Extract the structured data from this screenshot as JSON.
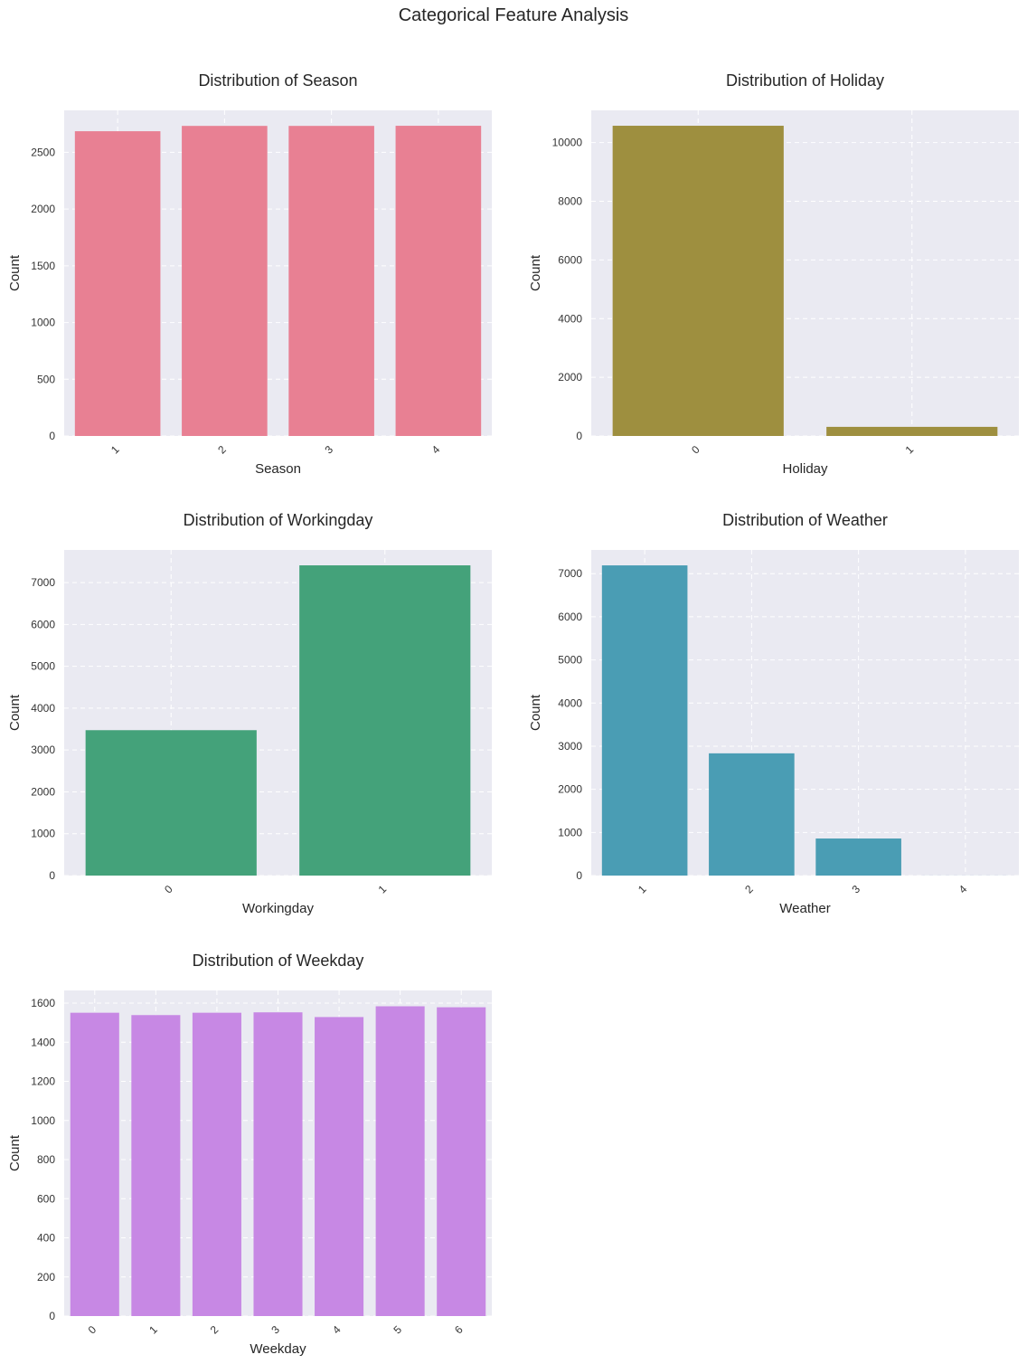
{
  "figure": {
    "title": "Categorical Feature Analysis"
  },
  "chart_data": [
    {
      "type": "bar",
      "title": "Distribution of Season",
      "xlabel": "Season",
      "ylabel": "Count",
      "categories": [
        "1",
        "2",
        "3",
        "4"
      ],
      "values": [
        2686,
        2733,
        2733,
        2734
      ],
      "yticks": [
        0,
        500,
        1000,
        1500,
        2000,
        2500
      ],
      "ylim": [
        0,
        2870
      ],
      "color": "#e88093",
      "grid": true
    },
    {
      "type": "bar",
      "title": "Distribution of Holiday",
      "xlabel": "Holiday",
      "ylabel": "Count",
      "categories": [
        "0",
        "1"
      ],
      "values": [
        10575,
        311
      ],
      "yticks": [
        0,
        2000,
        4000,
        6000,
        8000,
        10000
      ],
      "ylim": [
        0,
        11100
      ],
      "color": "#9e8f3f",
      "grid": true
    },
    {
      "type": "bar",
      "title": "Distribution of Workingday",
      "xlabel": "Workingday",
      "ylabel": "Count",
      "categories": [
        "0",
        "1"
      ],
      "values": [
        3474,
        7412
      ],
      "yticks": [
        0,
        1000,
        2000,
        3000,
        4000,
        5000,
        6000,
        7000
      ],
      "ylim": [
        0,
        7780
      ],
      "color": "#44a27a",
      "grid": true
    },
    {
      "type": "bar",
      "title": "Distribution of Weather",
      "xlabel": "Weather",
      "ylabel": "Count",
      "categories": [
        "1",
        "2",
        "3",
        "4"
      ],
      "values": [
        7192,
        2834,
        859,
        1
      ],
      "yticks": [
        0,
        1000,
        2000,
        3000,
        4000,
        5000,
        6000,
        7000
      ],
      "ylim": [
        0,
        7550
      ],
      "color": "#4a9db4",
      "grid": true
    },
    {
      "type": "bar",
      "title": "Distribution of Weekday",
      "xlabel": "Weekday",
      "ylabel": "Count",
      "categories": [
        "0",
        "1",
        "2",
        "3",
        "4",
        "5",
        "6"
      ],
      "values": [
        1551,
        1539,
        1551,
        1553,
        1529,
        1584,
        1579
      ],
      "yticks": [
        0,
        200,
        400,
        600,
        800,
        1000,
        1200,
        1400,
        1600
      ],
      "ylim": [
        0,
        1665
      ],
      "color": "#c788e4",
      "grid": true
    }
  ]
}
